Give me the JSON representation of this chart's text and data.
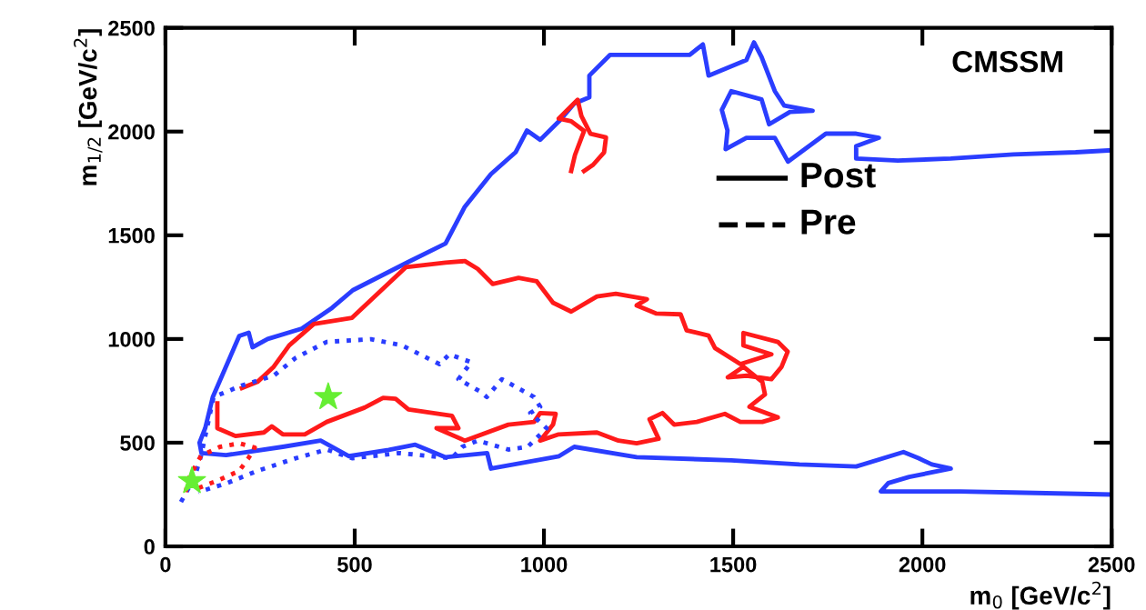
{
  "chart_data": {
    "type": "line",
    "xlabel": "m$_{0}$ [GeV/c$^{2}$]",
    "ylabel": "m$_{1/2}$ [GeV/c$^{2}$]",
    "xlim": [
      0,
      2500
    ],
    "ylim": [
      0,
      2500
    ],
    "xticks": [
      0,
      500,
      1000,
      1500,
      2000,
      2500
    ],
    "yticks": [
      0,
      500,
      1000,
      1500,
      2000,
      2500
    ],
    "grid": false,
    "legend": false,
    "annotations": [
      "CMSSM",
      "Post",
      "Pre"
    ],
    "series": [
      {
        "color": "#2a3dff",
        "line_style": "solid",
        "x": [
          2500,
          2240,
          2100,
          1965,
          1890,
          1910,
          1965,
          2075,
          2025,
          1990,
          1950,
          1825,
          1675,
          1495,
          1245,
          1080,
          1040,
          860,
          850,
          740,
          660,
          590,
          485,
          410,
          310,
          160,
          95,
          90,
          105,
          125,
          150,
          195,
          220,
          230,
          270,
          360,
          440,
          495,
          640,
          740,
          790,
          860,
          925,
          955,
          990,
          1040,
          1080,
          1120,
          1120,
          1175,
          1245,
          1385,
          1420,
          1435,
          1535,
          1555,
          1575,
          1610,
          1635,
          1710,
          1650,
          1595,
          1575,
          1495,
          1470,
          1485,
          1480,
          1535,
          1610,
          1645,
          1745,
          1825,
          1885,
          1825,
          1825,
          1935,
          2075,
          2240,
          2405,
          2500
        ],
        "values": [
          250,
          260,
          265,
          265,
          265,
          305,
          335,
          375,
          395,
          425,
          455,
          385,
          395,
          415,
          430,
          480,
          435,
          375,
          450,
          430,
          490,
          465,
          435,
          510,
          480,
          440,
          450,
          500,
          570,
          720,
          825,
          1015,
          1030,
          960,
          1000,
          1050,
          1150,
          1235,
          1370,
          1460,
          1635,
          1795,
          1900,
          2005,
          1960,
          2050,
          2135,
          2165,
          2270,
          2370,
          2370,
          2370,
          2420,
          2270,
          2345,
          2430,
          2360,
          2195,
          2125,
          2100,
          2095,
          2035,
          2155,
          2195,
          2105,
          2005,
          1915,
          1970,
          1970,
          1855,
          1990,
          1990,
          1970,
          1930,
          1870,
          1860,
          1870,
          1890,
          1900,
          1910
        ]
      },
      {
        "color": "#ff1a1a",
        "line_style": "solid",
        "x": [
          137,
          137,
          185,
          260,
          281,
          310,
          368,
          426,
          526,
          575,
          608,
          642,
          757,
          774,
          716,
          791,
          906,
          974,
          990,
          1031,
          1024,
          990,
          1039,
          1140,
          1197,
          1245,
          1303,
          1279,
          1313,
          1344,
          1404,
          1478,
          1519,
          1577,
          1618,
          1543,
          1584,
          1577,
          1527,
          1486,
          1536,
          1601,
          1628,
          1644,
          1618,
          1527,
          1527,
          1601,
          1519,
          1452,
          1435,
          1377,
          1361,
          1296,
          1245,
          1272,
          1190,
          1140,
          1072,
          1024,
          981,
          933,
          865,
          825,
          791,
          740,
          635,
          493,
          392,
          327,
          286,
          243,
          202
        ],
        "values": [
          690,
          570,
          532,
          549,
          579,
          540,
          540,
          600,
          669,
          716,
          712,
          660,
          630,
          570,
          570,
          510,
          587,
          600,
          643,
          639,
          587,
          510,
          540,
          549,
          510,
          497,
          519,
          613,
          643,
          587,
          600,
          639,
          600,
          600,
          622,
          673,
          733,
          793,
          866,
          815,
          823,
          806,
          866,
          939,
          986,
          1029,
          969,
          926,
          879,
          956,
          1016,
          1042,
          1119,
          1123,
          1162,
          1192,
          1218,
          1205,
          1132,
          1175,
          1278,
          1295,
          1265,
          1338,
          1376,
          1368,
          1346,
          1102,
          1072,
          969,
          866,
          793,
          763
        ]
      },
      {
        "color": "#ff1a1a",
        "line_style": "solid",
        "x": [
          1072,
          1082,
          1106,
          1072,
          1039,
          1089,
          1099,
          1123,
          1164,
          1159,
          1130,
          1106
        ],
        "values": [
          1810,
          1887,
          2003,
          2050,
          2063,
          2153,
          2075,
          1990,
          1972,
          1900,
          1840,
          1810
        ]
      },
      {
        "color": "#2a3dff",
        "line_style": "dotted",
        "x": [
          41,
          77,
          94,
          127,
          202,
          286,
          344,
          426,
          543,
          625,
          724,
          750,
          808,
          774,
          832,
          849,
          889,
          974,
          990,
          964,
          1007,
          957,
          906,
          825,
          784,
          757,
          618,
          493,
          426,
          344,
          243,
          161,
          87
        ],
        "values": [
          214,
          334,
          437,
          720,
          776,
          823,
          909,
          986,
          999,
          969,
          879,
          926,
          888,
          806,
          746,
          720,
          806,
          720,
          673,
          643,
          570,
          480,
          467,
          510,
          480,
          425,
          450,
          425,
          467,
          425,
          364,
          304,
          262
        ]
      },
      {
        "color": "#ff1a1a",
        "line_style": "dotted",
        "x": [
          53,
          63,
          94,
          144,
          195,
          236,
          219,
          195,
          137,
          77
        ],
        "values": [
          262,
          334,
          437,
          480,
          497,
          476,
          425,
          364,
          317,
          274
        ]
      },
      {
        "type": "scatter",
        "marker": "star",
        "color": "#66ee33",
        "x": [
          430
        ],
        "values": [
          720
        ]
      },
      {
        "type": "scatter",
        "marker": "star",
        "color": "#66ee33",
        "x": [
          70
        ],
        "values": [
          315
        ]
      }
    ]
  }
}
